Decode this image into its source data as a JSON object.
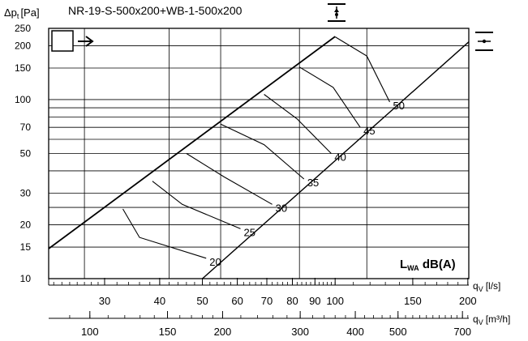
{
  "chart_data": {
    "type": "line",
    "title": "NR-19-S-500x200+WB-1-500x200",
    "ylabel": "Δp_t [Pa]",
    "ylabel_main": "Δp",
    "ylabel_sub": "t",
    "ylabel_unit": "[Pa]",
    "y_scale": "log",
    "ylim": [
      10,
      250
    ],
    "yticks": [
      10,
      15,
      20,
      30,
      50,
      70,
      100,
      150,
      200,
      250
    ],
    "y_gridlines": [
      10,
      15,
      20,
      25,
      30,
      40,
      50,
      60,
      70,
      80,
      90,
      100,
      150,
      200,
      250
    ],
    "x_scale": "log",
    "xlabel": "q_V [l/s]",
    "xlabel_main": "q",
    "xlabel_sub": "V",
    "xlabel_unit": "[l/s]",
    "xlim": [
      22.4,
      201
    ],
    "xticks": [
      30,
      40,
      50,
      60,
      70,
      80,
      90,
      100,
      150,
      200
    ],
    "x_gridlines": [
      27,
      42,
      55,
      83,
      118
    ],
    "xlabel2": "q_V [m³/h]",
    "xlabel2_main": "q",
    "xlabel2_sub": "V",
    "xlabel2_unit": "[m³/h]",
    "xticks2": [
      100,
      150,
      200,
      300,
      400,
      500,
      700
    ],
    "system_curves": [
      {
        "name": "upper",
        "points": [
          [
            22.4,
            14.7
          ],
          [
            100,
            225
          ]
        ]
      },
      {
        "name": "lower",
        "points": [
          [
            50,
            10
          ],
          [
            201,
            210
          ]
        ]
      }
    ],
    "sound_lines": [
      {
        "label": "20",
        "points": [
          [
            33,
            24.5
          ],
          [
            36,
            17
          ],
          [
            51,
            13
          ]
        ]
      },
      {
        "label": "25",
        "points": [
          [
            38.5,
            35
          ],
          [
            45,
            26
          ],
          [
            61,
            19
          ]
        ]
      },
      {
        "label": "30",
        "points": [
          [
            46,
            50
          ],
          [
            56,
            37
          ],
          [
            72,
            26
          ]
        ]
      },
      {
        "label": "35",
        "points": [
          [
            55,
            73
          ],
          [
            69,
            56
          ],
          [
            85,
            36
          ]
        ]
      },
      {
        "label": "40",
        "points": [
          [
            69,
            107
          ],
          [
            82,
            78
          ],
          [
            98,
            50
          ]
        ]
      },
      {
        "label": "45",
        "points": [
          [
            83,
            152
          ],
          [
            99,
            117
          ],
          [
            114,
            70
          ]
        ]
      },
      {
        "label": "50",
        "points": [
          [
            100,
            224
          ],
          [
            118,
            175
          ],
          [
            133,
            97
          ]
        ]
      }
    ],
    "annotation": "L_WA dB(A)",
    "annotation_main": "L",
    "annotation_sub": "WA",
    "annotation_rest": " dB(A)"
  }
}
